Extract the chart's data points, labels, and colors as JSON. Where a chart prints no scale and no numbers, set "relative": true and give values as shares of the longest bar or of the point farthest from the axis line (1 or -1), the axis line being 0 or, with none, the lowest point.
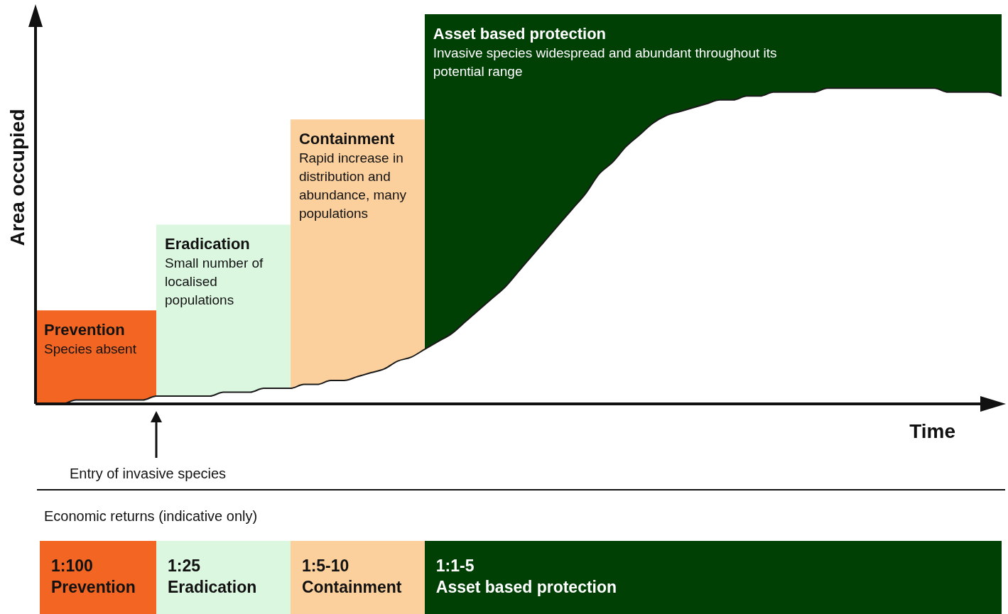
{
  "chart_data": {
    "type": "area",
    "relative": true,
    "xlabel": "Time",
    "ylabel": "Area occupied",
    "legend": false,
    "categories": [
      null,
      null,
      null,
      null,
      null,
      null,
      null,
      null,
      null,
      null,
      null,
      null,
      null,
      null,
      null,
      null,
      null,
      null,
      null,
      null,
      null,
      null,
      null,
      null,
      null,
      null,
      null,
      null,
      null,
      null,
      null,
      null,
      null,
      null,
      null,
      null,
      null,
      null,
      null,
      null,
      null,
      null,
      null,
      null,
      null,
      null,
      null,
      null,
      null,
      null,
      null,
      null,
      null,
      null,
      null,
      null,
      null,
      null,
      null,
      null,
      null,
      null,
      null,
      null,
      null,
      null,
      null,
      null,
      null,
      null,
      null,
      null,
      null
    ],
    "series": [
      {
        "type": "line",
        "color": "#1a1a1a",
        "values": [
          0,
          0,
          0,
          0.01,
          0.01,
          0.01,
          0.01,
          0.01,
          0.01,
          0.02,
          0.02,
          0.02,
          0.02,
          0.02,
          0.03,
          0.03,
          0.03,
          0.04,
          0.04,
          0.04,
          0.05,
          0.05,
          0.06,
          0.06,
          0.07,
          0.08,
          0.09,
          0.11,
          0.12,
          0.14,
          0.16,
          0.18,
          0.21,
          0.24,
          0.27,
          0.3,
          0.34,
          0.38,
          0.42,
          0.46,
          0.5,
          0.54,
          0.59,
          0.62,
          0.66,
          0.69,
          0.72,
          0.74,
          0.75,
          0.76,
          0.77,
          0.78,
          0.78,
          0.79,
          0.79,
          0.8,
          0.8,
          0.8,
          0.8,
          0.81,
          0.81,
          0.81,
          0.81,
          0.81,
          0.81,
          0.81,
          0.81,
          0.81,
          0.8,
          0.8,
          0.8,
          0.8,
          0.79
        ]
      },
      {
        "name": "Prevention",
        "color": "#f26522",
        "values": [
          0.24,
          0.24,
          0.24,
          0.24,
          0.24,
          0.24,
          0.24,
          0.24,
          0.24,
          0.24,
          null,
          null,
          null,
          null,
          null,
          null,
          null,
          null,
          null,
          null,
          null,
          null,
          null,
          null,
          null,
          null,
          null,
          null,
          null,
          null,
          null,
          null,
          null,
          null,
          null,
          null,
          null,
          null,
          null,
          null,
          null,
          null,
          null,
          null,
          null,
          null,
          null,
          null,
          null,
          null,
          null,
          null,
          null,
          null,
          null,
          null,
          null,
          null,
          null,
          null,
          null,
          null,
          null,
          null,
          null,
          null,
          null,
          null,
          null,
          null,
          null,
          null,
          null
        ]
      },
      {
        "name": "Eradication",
        "color": "#dbf7e0",
        "values": [
          null,
          null,
          null,
          null,
          null,
          null,
          null,
          null,
          null,
          0.46,
          0.46,
          0.46,
          0.46,
          0.46,
          0.46,
          0.46,
          0.46,
          0.46,
          0.46,
          0.46,
          null,
          null,
          null,
          null,
          null,
          null,
          null,
          null,
          null,
          null,
          null,
          null,
          null,
          null,
          null,
          null,
          null,
          null,
          null,
          null,
          null,
          null,
          null,
          null,
          null,
          null,
          null,
          null,
          null,
          null,
          null,
          null,
          null,
          null,
          null,
          null,
          null,
          null,
          null,
          null,
          null,
          null,
          null,
          null,
          null,
          null,
          null,
          null,
          null,
          null,
          null,
          null,
          null
        ]
      },
      {
        "name": "Containment",
        "color": "#fcd09c",
        "values": [
          null,
          null,
          null,
          null,
          null,
          null,
          null,
          null,
          null,
          null,
          null,
          null,
          null,
          null,
          null,
          null,
          null,
          null,
          null,
          0.73,
          0.73,
          0.73,
          0.73,
          0.73,
          0.73,
          0.73,
          0.73,
          0.73,
          0.73,
          0.73,
          null,
          null,
          null,
          null,
          null,
          null,
          null,
          null,
          null,
          null,
          null,
          null,
          null,
          null,
          null,
          null,
          null,
          null,
          null,
          null,
          null,
          null,
          null,
          null,
          null,
          null,
          null,
          null,
          null,
          null,
          null,
          null,
          null,
          null,
          null,
          null,
          null,
          null,
          null,
          null,
          null,
          null,
          null
        ]
      },
      {
        "name": "Asset based protection",
        "color": "#004005",
        "values": [
          null,
          null,
          null,
          null,
          null,
          null,
          null,
          null,
          null,
          null,
          null,
          null,
          null,
          null,
          null,
          null,
          null,
          null,
          null,
          null,
          null,
          null,
          null,
          null,
          null,
          null,
          null,
          null,
          null,
          1,
          1,
          1,
          1,
          1,
          1,
          1,
          1,
          1,
          1,
          1,
          1,
          1,
          1,
          1,
          1,
          1,
          1,
          1,
          1,
          1,
          1,
          1,
          1,
          1,
          1,
          1,
          1,
          1,
          1,
          1,
          1,
          1,
          1,
          1,
          1,
          1,
          1,
          1,
          1,
          1,
          1,
          1,
          1
        ]
      }
    ],
    "annotations": [
      "Species absent",
      "Small number of localised populations",
      "Rapid increase in distribution and abundance, many populations",
      "Invasive species widespread and abundant throughout its potential range",
      "Entry of invasive species",
      "Economic returns (indicative only)",
      "1:100",
      "1:25",
      "1:5-10",
      "1:1-5"
    ]
  }
}
